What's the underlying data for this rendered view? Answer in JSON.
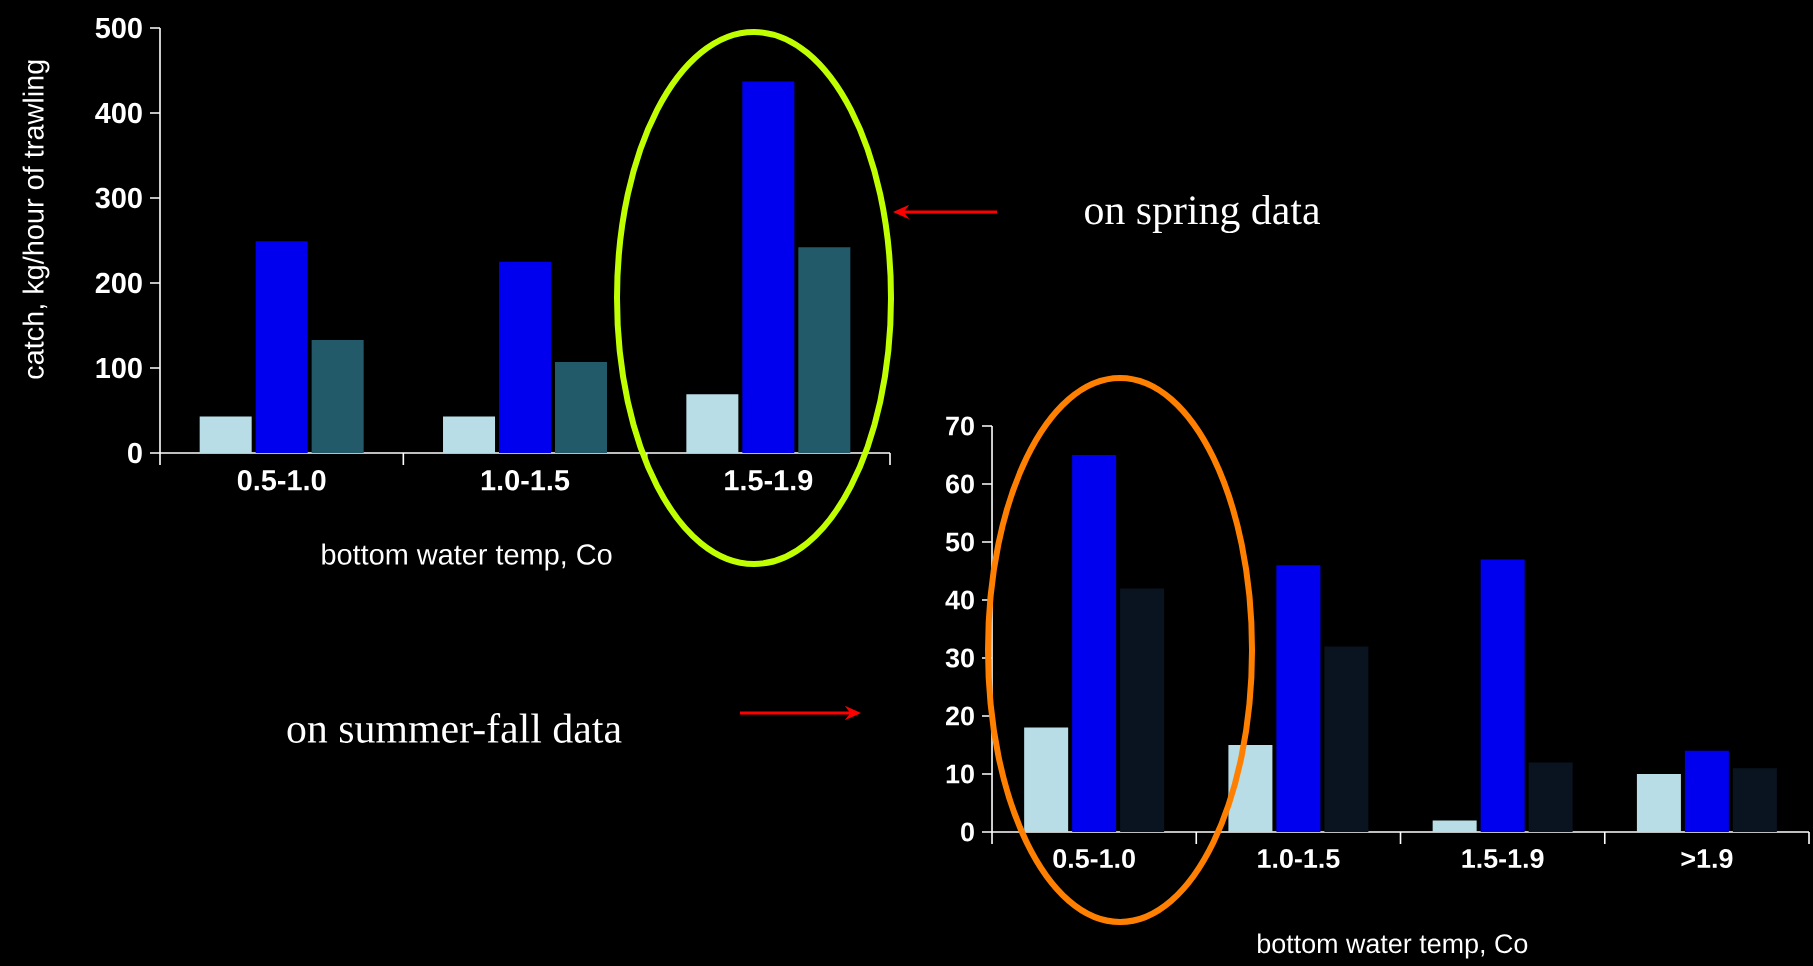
{
  "chart_data": [
    {
      "type": "bar",
      "ylabel": "catch, kg/hour of trawling",
      "xlabel": "bottom water temp, Co",
      "categories": [
        "0.5-1.0",
        "1.0-1.5",
        "1.5-1.9"
      ],
      "series": [
        {
          "color": "#b8dde6",
          "values": [
            43,
            43,
            69
          ]
        },
        {
          "color": "#0000ee",
          "values": [
            249,
            225,
            437
          ]
        },
        {
          "color": "#235a6a",
          "values": [
            133,
            107,
            242
          ]
        }
      ],
      "ylim": [
        0,
        500
      ],
      "yticks": [
        0,
        100,
        200,
        300,
        400,
        500
      ],
      "annotations": [
        "on spring data"
      ]
    },
    {
      "type": "bar",
      "xlabel": "bottom water temp, Co",
      "categories": [
        "0.5-1.0",
        "1.0-1.5",
        "1.5-1.9",
        ">1.9"
      ],
      "series": [
        {
          "color": "#b8dde6",
          "values": [
            18,
            15,
            2,
            10
          ]
        },
        {
          "color": "#0000ee",
          "values": [
            65,
            46,
            47,
            14
          ]
        },
        {
          "color": "#0a1420",
          "values": [
            42,
            32,
            12,
            11
          ]
        }
      ],
      "ylim": [
        0,
        70
      ],
      "yticks": [
        0,
        10,
        20,
        30,
        40,
        50,
        60,
        70
      ],
      "annotations": [
        "on summer-fall data"
      ]
    }
  ]
}
